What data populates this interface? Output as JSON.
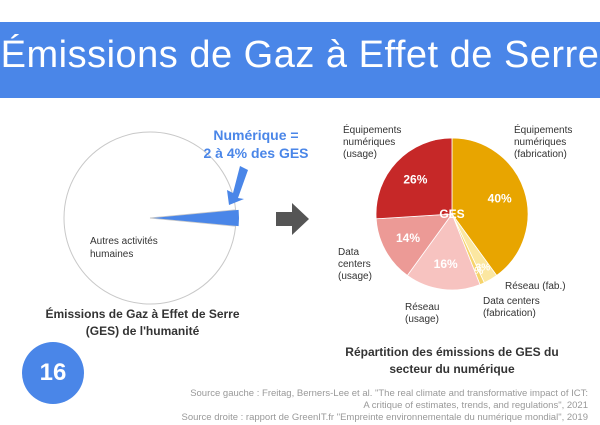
{
  "header": {
    "title": "Émissions de Gaz à Effet de Serre"
  },
  "left": {
    "callout": [
      "Numérique =",
      "2 à 4% des GES"
    ],
    "other_label": [
      "Autres activités",
      "humaines"
    ],
    "caption": [
      "Émissions de Gaz à Effet de Serre",
      "(GES) de l'humanité"
    ]
  },
  "right": {
    "center_label": "GES",
    "caption": [
      "Répartition des émissions de GES du",
      "secteur du numérique"
    ]
  },
  "page_number": "16",
  "sources": {
    "line1": "Source gauche : Freitag, Berners-Lee et al. \"The real climate and transformative impact of ICT:",
    "line2": "A critique of estimates, trends, and regulations\", 2021",
    "line3": "Source droite : rapport de GreenIT.fr \"Empreinte environnementale du numérique mondial\", 2019"
  },
  "colors": {
    "accent": "#4a86e8",
    "slice_fab": "#e8a500",
    "slice_usage": "#c62828",
    "slice_dc_usage": "#ec9a96",
    "slice_net_usage": "#f7c3c0",
    "slice_net_fab": "#f6d36a",
    "slice_dc_fab": "#fbe7a1"
  },
  "chart_data": [
    {
      "type": "pie",
      "title": "Émissions de Gaz à Effet de Serre (GES) de l'humanité",
      "slices": [
        {
          "label": "Numérique",
          "value": 3,
          "display": "2 à 4% des GES"
        },
        {
          "label": "Autres activités humaines",
          "value": 97
        }
      ]
    },
    {
      "type": "pie",
      "title": "Répartition des émissions de GES du secteur du numérique",
      "slices": [
        {
          "label": "Équipements numériques (fabrication)",
          "value": 40,
          "display": "40%",
          "color": "#e8a500"
        },
        {
          "label": "Data centers (fabrication)",
          "value": 3,
          "display": "3%",
          "color": "#fbe7a1"
        },
        {
          "label": "Réseau (fab.)",
          "value": 1,
          "display": "1%",
          "color": "#f6d36a"
        },
        {
          "label": "Réseau (usage)",
          "value": 16,
          "display": "16%",
          "color": "#f7c3c0"
        },
        {
          "label": "Data centers (usage)",
          "value": 14,
          "display": "14%",
          "color": "#ec9a96"
        },
        {
          "label": "Équipements numériques (usage)",
          "value": 26,
          "display": "26%",
          "color": "#c62828"
        }
      ]
    }
  ]
}
